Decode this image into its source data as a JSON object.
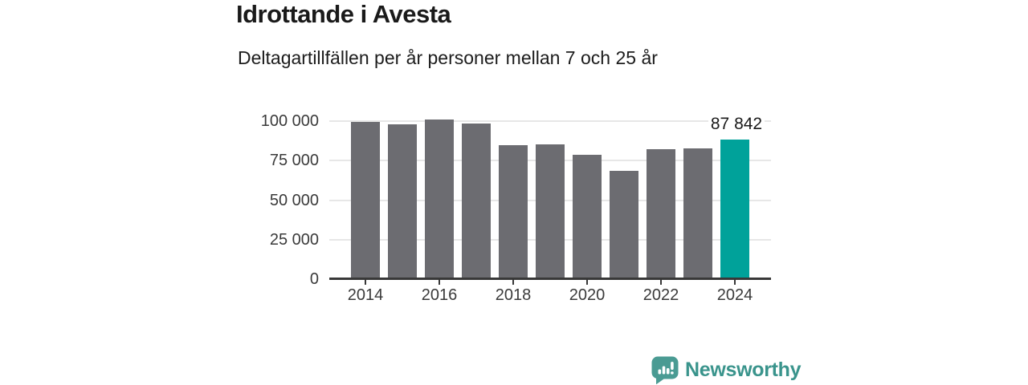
{
  "header": {
    "title": "Idrottande i Avesta",
    "subtitle": "Deltagartillfällen per år personer mellan 7 och 25 år"
  },
  "chart_data": {
    "type": "bar",
    "title": "Idrottande i Avesta",
    "subtitle": "Deltagartillfällen per år personer mellan 7 och 25 år",
    "categories": [
      2014,
      2015,
      2016,
      2017,
      2018,
      2019,
      2020,
      2021,
      2022,
      2023,
      2024
    ],
    "values": [
      99200,
      97600,
      100300,
      98000,
      84200,
      85000,
      78000,
      68000,
      81500,
      82300,
      87842
    ],
    "ylim": [
      0,
      100000
    ],
    "grid": true,
    "y_ticks": [
      {
        "value": 100000,
        "label": "100 000"
      },
      {
        "value": 75000,
        "label": "75 000"
      },
      {
        "value": 50000,
        "label": "50 000"
      },
      {
        "value": 25000,
        "label": "25 000"
      },
      {
        "value": 0,
        "label": "0"
      }
    ],
    "x_ticks": [
      {
        "index": 0,
        "label": "2014"
      },
      {
        "index": 2,
        "label": "2016"
      },
      {
        "index": 4,
        "label": "2018"
      },
      {
        "index": 6,
        "label": "2020"
      },
      {
        "index": 8,
        "label": "2022"
      },
      {
        "index": 10,
        "label": "2024"
      }
    ],
    "highlight": {
      "index": 10,
      "label": "87 842"
    },
    "bar_color": "#6c6c71",
    "highlight_color": "#00a29a"
  },
  "footer": {
    "brand": "Newsworthy",
    "brand_color": "#3a948c",
    "logo_icon": "speech-bubble-bar-chart"
  }
}
